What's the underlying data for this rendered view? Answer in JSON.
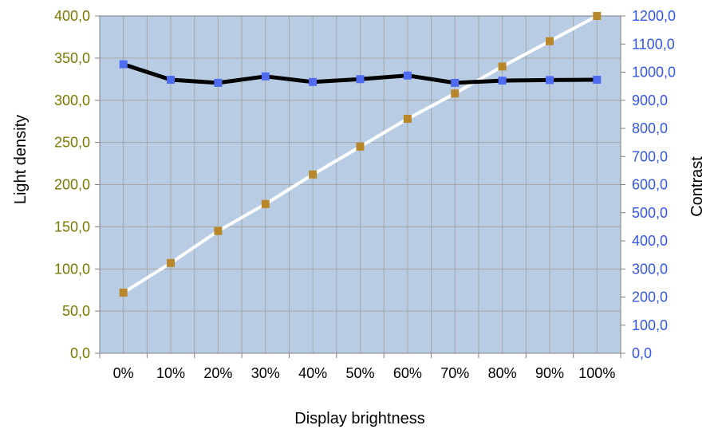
{
  "chart_data": {
    "type": "line",
    "x_categories": [
      "0%",
      "10%",
      "20%",
      "30%",
      "40%",
      "50%",
      "60%",
      "70%",
      "80%",
      "90%",
      "100%"
    ],
    "xlabel": "Display brightness",
    "ylabel_left": "Light density",
    "ylabel_right": "Contrast",
    "ylim_left": [
      0,
      400
    ],
    "ylim_right": [
      0,
      1200
    ],
    "y_ticks_left": [
      "0,0",
      "50,0",
      "100,0",
      "150,0",
      "200,0",
      "250,0",
      "300,0",
      "350,0",
      "400,0"
    ],
    "y_ticks_right": [
      "0,0",
      "100,0",
      "200,0",
      "300,0",
      "400,0",
      "500,0",
      "600,0",
      "700,0",
      "800,0",
      "900,0",
      "1000,0",
      "1100,0",
      "1200,0"
    ],
    "grid": true,
    "series": [
      {
        "axis": "left",
        "line_color": "#ffffff",
        "marker_color": "#b8872a",
        "values": [
          72,
          107,
          145,
          177,
          212,
          245,
          278,
          308,
          340,
          370,
          400
        ]
      },
      {
        "axis": "right",
        "line_color": "#000000",
        "marker_color": "#4f6cf0",
        "values": [
          1028,
          973,
          962,
          985,
          965,
          975,
          988,
          962,
          970,
          972,
          973
        ]
      }
    ],
    "colors": {
      "plot_background": "#b8cce4",
      "gridline": "#a6a6a6",
      "left_tick_color": "#7a7a00",
      "right_tick_color": "#3355ee"
    }
  }
}
